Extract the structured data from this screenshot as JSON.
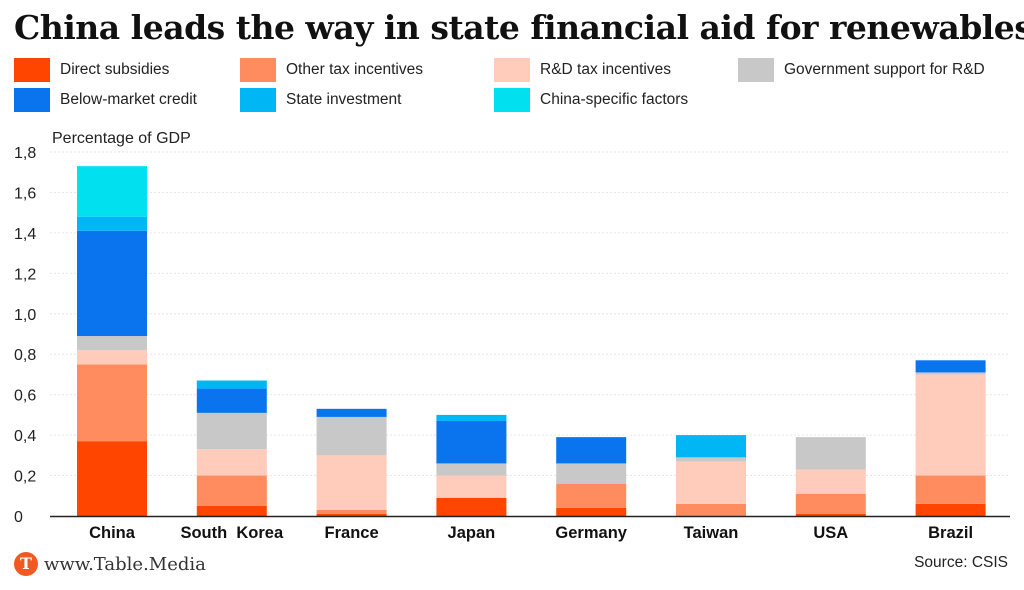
{
  "brand": {
    "logo_letter": "T",
    "name": "www.Table.Media",
    "accent": "#f05a22"
  },
  "source": "Source: CSIS",
  "chart_data": {
    "type": "bar",
    "stacked": true,
    "title": "China leads the way in state financial aid for renewables",
    "ylabel": "Percentage of GDP",
    "xlabel": "",
    "ylim": [
      0,
      1.8
    ],
    "yticks": [
      "0",
      "0,2",
      "0,4",
      "0,6",
      "0,8",
      "1,0",
      "1,2",
      "1,4",
      "1,6",
      "1,8"
    ],
    "grid": true,
    "legend_position": "top",
    "categories": [
      "China",
      "South  Korea",
      "France",
      "Japan",
      "Germany",
      "Taiwan",
      "USA",
      "Brazil"
    ],
    "series": [
      {
        "name": "Direct subsidies",
        "color": "#ff4500",
        "values": [
          0.37,
          0.05,
          0.01,
          0.09,
          0.04,
          0.0,
          0.01,
          0.06
        ]
      },
      {
        "name": "Other tax incentives",
        "color": "#ff8c5e",
        "values": [
          0.38,
          0.15,
          0.02,
          0.0,
          0.12,
          0.06,
          0.1,
          0.14
        ]
      },
      {
        "name": "R&D tax incentives",
        "color": "#ffccbc",
        "values": [
          0.07,
          0.13,
          0.27,
          0.11,
          0.0,
          0.21,
          0.12,
          0.5
        ]
      },
      {
        "name": "Government support for R&D",
        "color": "#c8c8c8",
        "values": [
          0.07,
          0.18,
          0.19,
          0.06,
          0.1,
          0.02,
          0.16,
          0.01
        ]
      },
      {
        "name": "Below-market credit",
        "color": "#0a74ee",
        "values": [
          0.52,
          0.12,
          0.04,
          0.21,
          0.13,
          0.0,
          0.0,
          0.06
        ]
      },
      {
        "name": "State investment",
        "color": "#00b6f5",
        "values": [
          0.07,
          0.04,
          0.0,
          0.03,
          0.0,
          0.11,
          0.0,
          0.0
        ]
      },
      {
        "name": "China-specific factors",
        "color": "#00e0ee",
        "values": [
          0.25,
          0.0,
          0.0,
          0.0,
          0.0,
          0.0,
          0.0,
          0.0
        ]
      }
    ]
  }
}
